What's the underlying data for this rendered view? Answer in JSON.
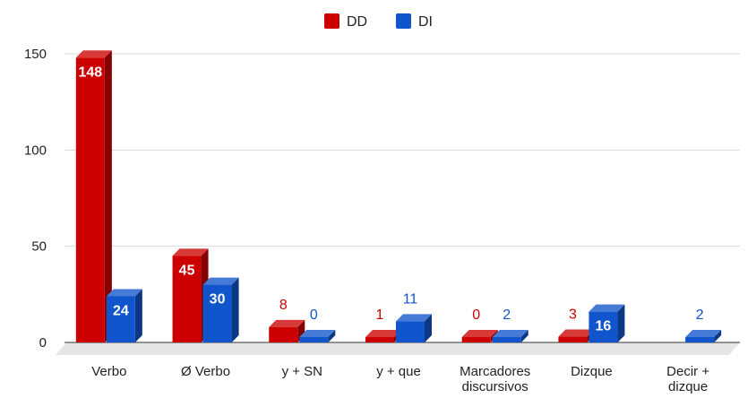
{
  "chart_data": {
    "type": "bar",
    "categories": [
      [
        "Verbo"
      ],
      [
        "Ø Verbo"
      ],
      [
        "y + SN"
      ],
      [
        "y + que"
      ],
      [
        "Marcadores",
        "discursivos"
      ],
      [
        "Dizque"
      ],
      [
        "Decir +",
        "dizque"
      ]
    ],
    "series": [
      {
        "name": "DD",
        "color": "#cc0000",
        "values": [
          148,
          45,
          8,
          1,
          0,
          3,
          null
        ]
      },
      {
        "name": "DI",
        "color": "#1155cc",
        "values": [
          24,
          30,
          0,
          11,
          2,
          16,
          2
        ]
      }
    ],
    "yticks": [
      0,
      50,
      100,
      150
    ],
    "ylim": [
      0,
      150
    ],
    "grid": true,
    "legend": "top-center"
  }
}
